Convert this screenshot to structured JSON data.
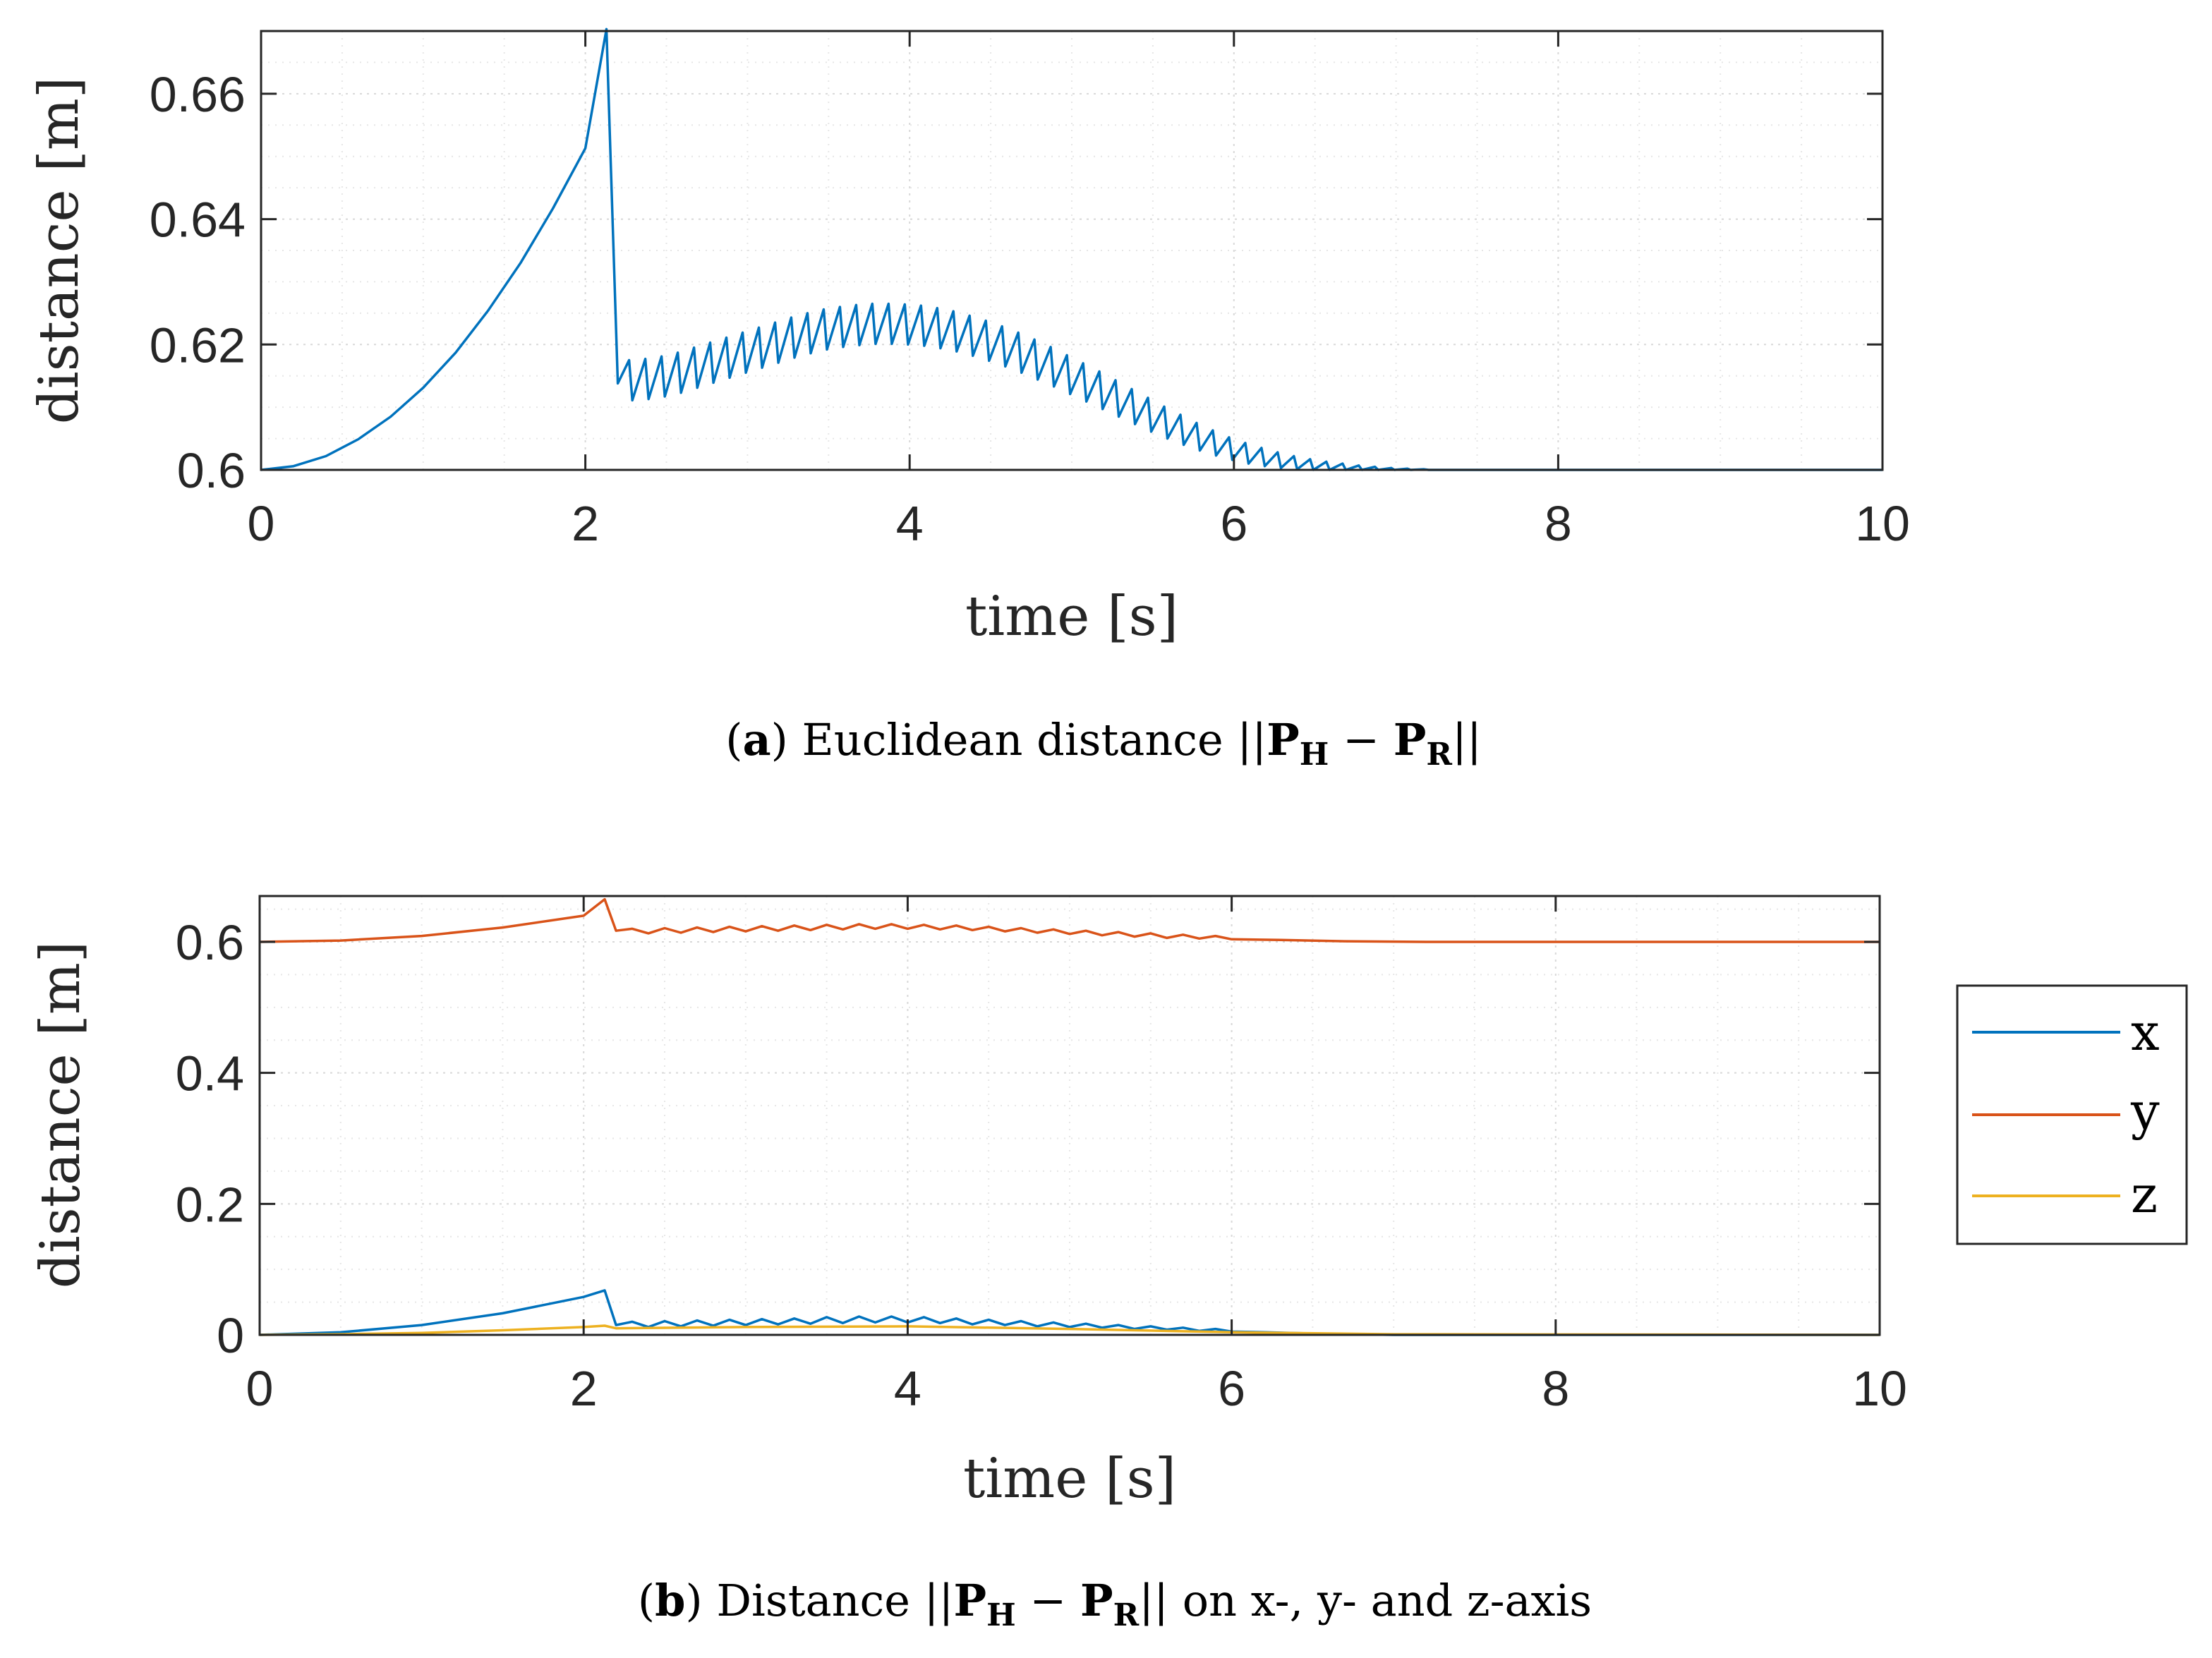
{
  "colors": {
    "x": "#0072BD",
    "y": "#D95319",
    "z": "#EDB120",
    "axis": "#262626"
  },
  "captions": {
    "a": {
      "letter": "a",
      "text": "Euclidean distance",
      "formula_prefix": "||",
      "P": "P",
      "H": "H",
      "minus": "−",
      "R": "R",
      "formula_suffix": "||",
      "rest": ""
    },
    "b": {
      "letter": "b",
      "text": "Distance",
      "formula_prefix": "||",
      "P": "P",
      "H": "H",
      "minus": "−",
      "R": "R",
      "formula_suffix": "||",
      "rest": "on x-, y- and z-axis"
    }
  },
  "chart_data": [
    {
      "id": "a",
      "type": "line",
      "xlabel": "time [s]",
      "ylabel": "distance [m]",
      "xlim": [
        0,
        10
      ],
      "ylim": [
        0.6,
        0.67
      ],
      "xticks": [
        0,
        2,
        4,
        6,
        8,
        10
      ],
      "yticks": [
        0.6,
        0.62,
        0.64,
        0.66
      ],
      "ytick_labels": [
        "0.6",
        "0.62",
        "0.64",
        "0.66"
      ],
      "grid": true,
      "legend": null,
      "series": [
        {
          "name": "distance",
          "color": "#0072BD",
          "x": [
            0,
            0.2,
            0.4,
            0.6,
            0.8,
            1.0,
            1.2,
            1.4,
            1.6,
            1.8,
            2.0,
            2.13,
            2.2,
            2.27,
            2.29,
            2.37,
            2.39,
            2.47,
            2.49,
            2.57,
            2.59,
            2.67,
            2.69,
            2.77,
            2.79,
            2.87,
            2.89,
            2.97,
            2.99,
            3.07,
            3.09,
            3.17,
            3.19,
            3.27,
            3.29,
            3.37,
            3.39,
            3.47,
            3.49,
            3.57,
            3.59,
            3.67,
            3.69,
            3.77,
            3.79,
            3.87,
            3.89,
            3.97,
            3.99,
            4.07,
            4.09,
            4.17,
            4.19,
            4.27,
            4.29,
            4.37,
            4.39,
            4.47,
            4.49,
            4.57,
            4.59,
            4.67,
            4.69,
            4.77,
            4.79,
            4.87,
            4.89,
            4.97,
            4.99,
            5.07,
            5.09,
            5.17,
            5.19,
            5.27,
            5.29,
            5.37,
            5.39,
            5.47,
            5.49,
            5.57,
            5.59,
            5.67,
            5.69,
            5.77,
            5.79,
            5.87,
            5.89,
            5.97,
            5.99,
            6.07,
            6.09,
            6.17,
            6.19,
            6.27,
            6.29,
            6.37,
            6.39,
            6.47,
            6.49,
            6.57,
            6.59,
            6.67,
            6.69,
            6.77,
            6.79,
            6.87,
            6.89,
            6.97,
            6.99,
            7.07,
            7.09,
            7.17,
            7.2,
            7.35,
            10
          ],
          "y": [
            0.6,
            0.6006,
            0.6022,
            0.6049,
            0.6085,
            0.6131,
            0.6187,
            0.6254,
            0.633,
            0.6417,
            0.6513,
            0.6703,
            0.6138,
            0.6175,
            0.6111,
            0.6177,
            0.6113,
            0.6181,
            0.6117,
            0.6187,
            0.6123,
            0.6195,
            0.6131,
            0.6203,
            0.6139,
            0.6211,
            0.6147,
            0.6219,
            0.6155,
            0.6227,
            0.6163,
            0.6235,
            0.6171,
            0.6243,
            0.6179,
            0.625,
            0.6186,
            0.6256,
            0.6192,
            0.626,
            0.6196,
            0.6263,
            0.6199,
            0.6265,
            0.6201,
            0.6265,
            0.6201,
            0.6264,
            0.62,
            0.6262,
            0.6198,
            0.6258,
            0.6194,
            0.6253,
            0.6189,
            0.6246,
            0.6182,
            0.6238,
            0.6174,
            0.6229,
            0.6165,
            0.6219,
            0.6155,
            0.6208,
            0.6144,
            0.6196,
            0.6133,
            0.6183,
            0.6121,
            0.617,
            0.6109,
            0.6157,
            0.6097,
            0.6143,
            0.6085,
            0.6129,
            0.6073,
            0.6115,
            0.6061,
            0.6101,
            0.605,
            0.6088,
            0.604,
            0.6075,
            0.6031,
            0.6063,
            0.6023,
            0.6052,
            0.6016,
            0.6043,
            0.601,
            0.6035,
            0.6006,
            0.6028,
            0.6003,
            0.6022,
            0.6001,
            0.6017,
            0.6,
            0.6013,
            0.6,
            0.601,
            0.6,
            0.6007,
            0.6,
            0.6005,
            0.6,
            0.6003,
            0.6,
            0.6002,
            0.6,
            0.6001,
            0.6,
            0.6,
            0.6
          ]
        }
      ]
    },
    {
      "id": "b",
      "type": "line",
      "xlabel": "time [s]",
      "ylabel": "distance [m]",
      "xlim": [
        0,
        10
      ],
      "ylim": [
        0,
        0.67
      ],
      "xticks": [
        0,
        2,
        4,
        6,
        8,
        10
      ],
      "yticks": [
        0,
        0.2,
        0.4,
        0.6
      ],
      "ytick_labels": [
        "0",
        "0.2",
        "0.4",
        "0.6"
      ],
      "grid": true,
      "legend": "outside-right",
      "series": [
        {
          "name": "x",
          "color": "#0072BD",
          "x": [
            0,
            0.5,
            1.0,
            1.5,
            2.0,
            2.13,
            2.2,
            2.3,
            2.4,
            2.5,
            2.6,
            2.7,
            2.8,
            2.9,
            3.0,
            3.1,
            3.2,
            3.3,
            3.4,
            3.5,
            3.6,
            3.7,
            3.8,
            3.9,
            4.0,
            4.1,
            4.2,
            4.3,
            4.4,
            4.5,
            4.6,
            4.7,
            4.8,
            4.9,
            5.0,
            5.1,
            5.2,
            5.3,
            5.4,
            5.5,
            5.6,
            5.7,
            5.8,
            5.9,
            6.0,
            6.2,
            6.5,
            7.0,
            10
          ],
          "y": [
            0,
            0.004,
            0.015,
            0.033,
            0.058,
            0.068,
            0.015,
            0.02,
            0.012,
            0.021,
            0.013,
            0.022,
            0.014,
            0.023,
            0.015,
            0.024,
            0.016,
            0.025,
            0.017,
            0.027,
            0.018,
            0.028,
            0.019,
            0.028,
            0.019,
            0.027,
            0.018,
            0.025,
            0.016,
            0.023,
            0.015,
            0.021,
            0.013,
            0.019,
            0.012,
            0.017,
            0.011,
            0.015,
            0.009,
            0.013,
            0.008,
            0.011,
            0.006,
            0.009,
            0.005,
            0.004,
            0.002,
            0.0,
            0.0
          ]
        },
        {
          "name": "y",
          "color": "#D95319",
          "x": [
            0,
            0.5,
            1.0,
            1.5,
            2.0,
            2.13,
            2.2,
            2.3,
            2.4,
            2.5,
            2.6,
            2.7,
            2.8,
            2.9,
            3.0,
            3.1,
            3.2,
            3.3,
            3.4,
            3.5,
            3.6,
            3.7,
            3.8,
            3.9,
            4.0,
            4.1,
            4.2,
            4.3,
            4.4,
            4.5,
            4.6,
            4.7,
            4.8,
            4.9,
            5.0,
            5.1,
            5.2,
            5.3,
            5.4,
            5.5,
            5.6,
            5.7,
            5.8,
            5.9,
            6.0,
            6.3,
            6.7,
            7.2,
            10
          ],
          "y": [
            0.6,
            0.602,
            0.609,
            0.622,
            0.64,
            0.665,
            0.617,
            0.62,
            0.613,
            0.621,
            0.614,
            0.622,
            0.615,
            0.623,
            0.616,
            0.624,
            0.617,
            0.625,
            0.618,
            0.626,
            0.619,
            0.627,
            0.62,
            0.627,
            0.62,
            0.626,
            0.619,
            0.625,
            0.618,
            0.623,
            0.616,
            0.621,
            0.614,
            0.619,
            0.612,
            0.617,
            0.61,
            0.615,
            0.608,
            0.613,
            0.606,
            0.611,
            0.605,
            0.609,
            0.604,
            0.603,
            0.601,
            0.6,
            0.6
          ]
        },
        {
          "name": "z",
          "color": "#EDB120",
          "x": [
            0,
            0.5,
            1.0,
            1.5,
            2.0,
            2.13,
            2.2,
            3.0,
            4.0,
            5.0,
            6.0,
            7.0,
            10
          ],
          "y": [
            0,
            0.001,
            0.003,
            0.007,
            0.012,
            0.014,
            0.01,
            0.012,
            0.013,
            0.009,
            0.004,
            0.001,
            0.0
          ]
        }
      ]
    }
  ]
}
